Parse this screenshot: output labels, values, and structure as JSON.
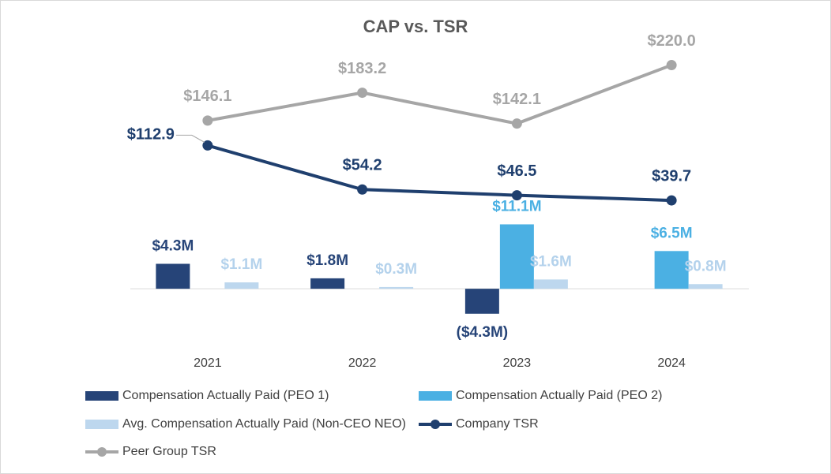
{
  "chart_data": {
    "type": "bar-line",
    "title": "CAP vs. TSR",
    "categories": [
      "2021",
      "2022",
      "2023",
      "2024"
    ],
    "series": [
      {
        "name": "Compensation Actually Paid (PEO 1)",
        "type": "bar",
        "color": "#264478",
        "values": [
          4.3,
          1.8,
          -4.3,
          null
        ],
        "value_labels": [
          "$4.3M",
          "$1.8M",
          "($4.3M)",
          null
        ]
      },
      {
        "name": "Compensation Actually Paid (PEO 2)",
        "type": "bar",
        "color": "#4bb0e3",
        "values": [
          null,
          null,
          11.1,
          6.5
        ],
        "value_labels": [
          null,
          null,
          "$11.1M",
          "$6.5M"
        ]
      },
      {
        "name": "Avg. Compensation Actually Paid (Non-CEO NEO)",
        "type": "bar",
        "color": "#bdd7ee",
        "values": [
          1.1,
          0.3,
          1.6,
          0.8
        ],
        "value_labels": [
          "$1.1M",
          "$0.3M",
          "$1.6M",
          "$0.8M"
        ]
      },
      {
        "name": "Company TSR",
        "type": "line",
        "axis": "y2",
        "color": "#1f3f6e",
        "values": [
          112.9,
          54.2,
          46.5,
          39.7
        ],
        "value_labels": [
          "$112.9",
          "$54.2",
          "$46.5",
          "$39.7"
        ]
      },
      {
        "name": "Peer Group TSR",
        "type": "line",
        "axis": "y2",
        "color": "#a6a6a6",
        "values": [
          146.1,
          183.2,
          142.1,
          220.0
        ],
        "value_labels": [
          "$146.1",
          "$183.2",
          "$142.1",
          "$220.0"
        ]
      }
    ],
    "ylim": [
      -8,
      45
    ],
    "y2lim": [
      -140,
      270
    ]
  }
}
